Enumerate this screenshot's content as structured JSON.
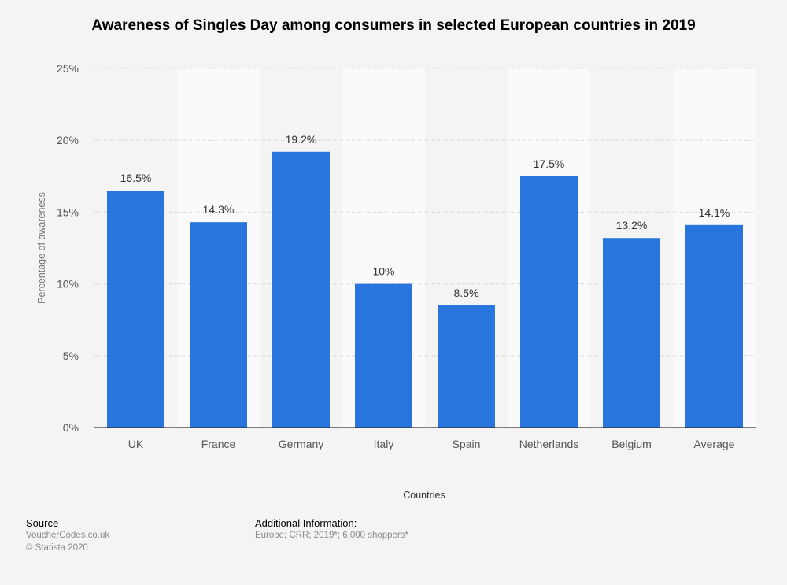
{
  "chart_data": {
    "type": "bar",
    "title": "Awareness of Singles Day among consumers in selected European countries in 2019",
    "xlabel": "Countries",
    "ylabel": "Percentage of awareness",
    "categories": [
      "UK",
      "France",
      "Germany",
      "Italy",
      "Spain",
      "Netherlands",
      "Belgium",
      "Average"
    ],
    "values": [
      16.5,
      14.3,
      19.2,
      10,
      8.5,
      17.5,
      13.2,
      14.1
    ],
    "value_labels": [
      "16.5%",
      "14.3%",
      "19.2%",
      "10%",
      "8.5%",
      "17.5%",
      "13.2%",
      "14.1%"
    ],
    "ylim": [
      0,
      25
    ],
    "yticks": [
      0,
      5,
      10,
      15,
      20,
      25
    ],
    "ytick_labels": [
      "0%",
      "5%",
      "10%",
      "15%",
      "20%",
      "25%"
    ],
    "grid": true,
    "bar_color": "#2876dd"
  },
  "footer": {
    "source_heading": "Source",
    "source_lines": [
      "VoucherCodes.co.uk",
      "© Statista 2020"
    ],
    "info_heading": "Additional Information:",
    "info_lines": [
      "Europe; CRR; 2019*; 6,000 shoppers*"
    ]
  }
}
